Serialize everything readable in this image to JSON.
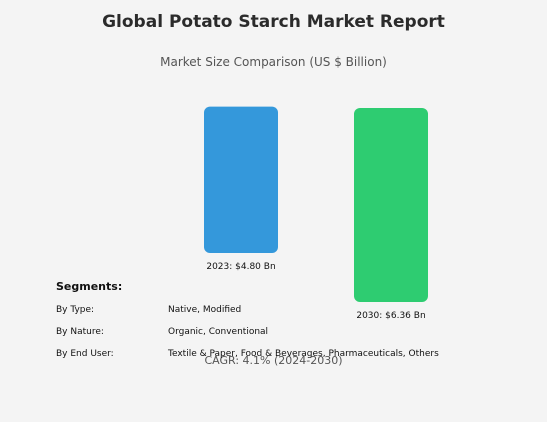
{
  "header": {
    "title": "Global Potato Starch Market Report",
    "subtitle": "Market Size Comparison (US $ Billion)"
  },
  "chart_data": {
    "type": "bar",
    "title": "Global Potato Starch Market Report",
    "subtitle": "Market Size Comparison (US $ Billion)",
    "categories": [
      "2023",
      "2030"
    ],
    "values": [
      4.8,
      6.36
    ],
    "data_labels": [
      "2023: $4.80 Bn",
      "2030: $6.36 Bn"
    ],
    "colors": [
      "#3498db",
      "#2ecc71"
    ],
    "unit": "US $ Billion",
    "grid": false,
    "legend": "none"
  },
  "segments": {
    "heading": "Segments:",
    "rows": [
      {
        "label": "By Type:",
        "value": "Native, Modified"
      },
      {
        "label": "By Nature:",
        "value": "Organic, Conventional"
      },
      {
        "label": "By End User:",
        "value": "Textile & Paper, Food & Beverages, Pharmaceuticals, Others"
      }
    ]
  },
  "footer": {
    "cagr": "CAGR: 4.1% (2024-2030)"
  }
}
